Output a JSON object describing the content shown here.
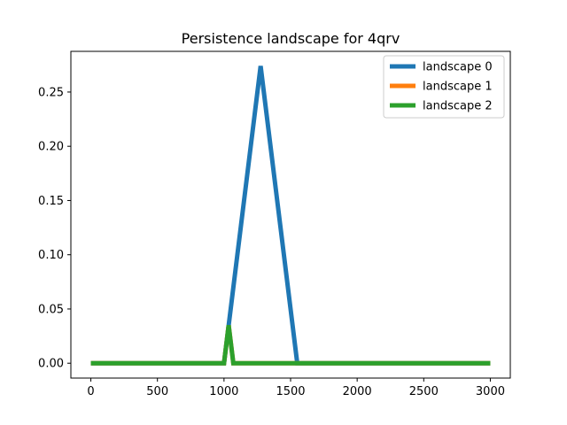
{
  "chart_data": {
    "type": "line",
    "title": "Persistence landscape for 4qrv",
    "xlabel": "",
    "ylabel": "",
    "xlim": [
      -150,
      3150
    ],
    "ylim": [
      -0.0137,
      0.2875
    ],
    "x_ticks": [
      0,
      500,
      1000,
      1500,
      2000,
      2500,
      3000
    ],
    "x_tick_labels": [
      "0",
      "500",
      "1000",
      "1500",
      "2000",
      "2500",
      "3000"
    ],
    "y_ticks": [
      0.0,
      0.05,
      0.1,
      0.15,
      0.2,
      0.25
    ],
    "y_tick_labels": [
      "0.00",
      "0.05",
      "0.10",
      "0.15",
      "0.20",
      "0.25"
    ],
    "grid": false,
    "legend_position": "top-right",
    "series": [
      {
        "name": "landscape 0",
        "color": "#1f77b4",
        "x": [
          0,
          1000,
          1275,
          1550,
          3000
        ],
        "y": [
          0,
          0,
          0.274,
          0,
          0
        ]
      },
      {
        "name": "landscape 1",
        "color": "#ff7f0e",
        "x": [
          0,
          1000,
          1035,
          1070,
          3000
        ],
        "y": [
          0,
          0,
          0.035,
          0,
          0
        ]
      },
      {
        "name": "landscape 2",
        "color": "#2ca02c",
        "x": [
          0,
          1000,
          1035,
          1070,
          3000
        ],
        "y": [
          0,
          0,
          0.035,
          0,
          0
        ]
      }
    ]
  }
}
